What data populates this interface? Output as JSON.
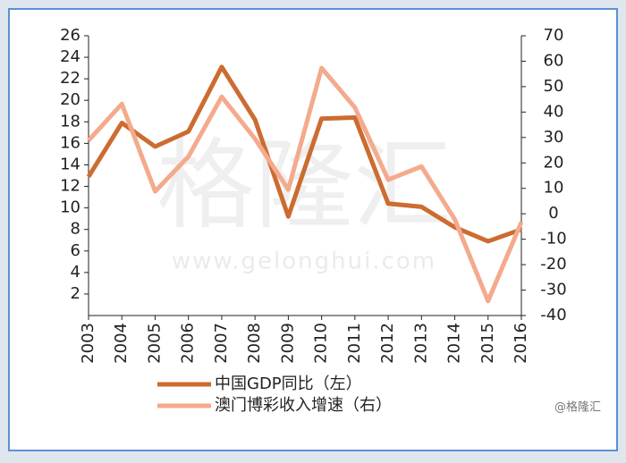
{
  "chart_data": {
    "type": "line",
    "categories": [
      "2003",
      "2004",
      "2005",
      "2006",
      "2007",
      "2008",
      "2009",
      "2010",
      "2011",
      "2012",
      "2013",
      "2014",
      "2015",
      "2016"
    ],
    "series": [
      {
        "name": "中国GDP同比（左）",
        "color": "#cc6c30",
        "values": [
          12.9,
          17.9,
          15.7,
          17.1,
          23.1,
          18.2,
          9.2,
          18.3,
          18.4,
          10.4,
          10.1,
          8.2,
          6.9,
          8.0
        ]
      },
      {
        "name": "澳门博彩收入增速（右）",
        "color": "#f4aa8c",
        "axis": "y2",
        "values": [
          28.8,
          43.2,
          8.8,
          22.5,
          46,
          29.5,
          9.5,
          57.3,
          41.8,
          13.4,
          18.6,
          -2.2,
          -34.3,
          -3.3
        ]
      }
    ],
    "ylim": [
      0,
      26
    ],
    "yticks": [
      2,
      4,
      6,
      8,
      10,
      12,
      14,
      16,
      18,
      20,
      22,
      24,
      26
    ],
    "y2lim": [
      -40,
      70
    ],
    "y2ticks": [
      -40,
      -30,
      -20,
      -10,
      0,
      10,
      20,
      30,
      40,
      50,
      60,
      70
    ],
    "watermark": "格隆汇",
    "watermark_url": "www.gelonghui.com",
    "source": "@格隆汇"
  }
}
